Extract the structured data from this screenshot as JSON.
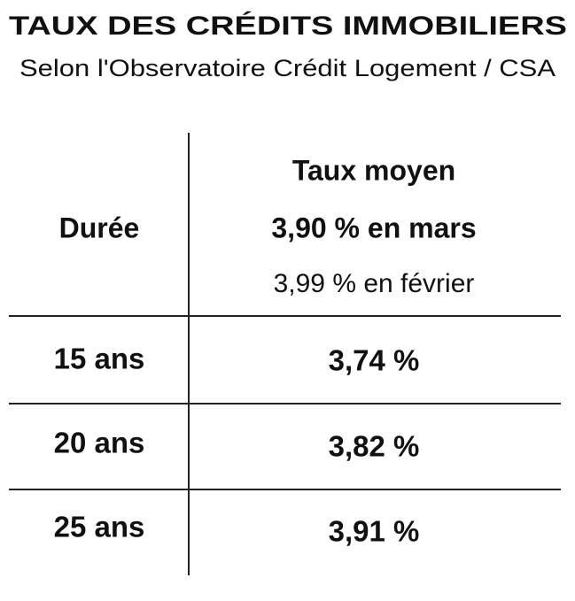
{
  "header": {
    "title": "TAUX DES CRÉDITS IMMOBILIERS",
    "subtitle": "Selon l'Observatoire Crédit Logement / CSA"
  },
  "table": {
    "header": [
      "Durée",
      {
        "line1": "Taux moyen",
        "line2": "3,90 % en mars",
        "line3": "3,99 % en février"
      }
    ],
    "rows": [
      [
        "15 ans",
        "3,74 %"
      ],
      [
        "20 ans",
        "3,82 %"
      ],
      [
        "25 ans",
        "3,91 %"
      ]
    ]
  }
}
